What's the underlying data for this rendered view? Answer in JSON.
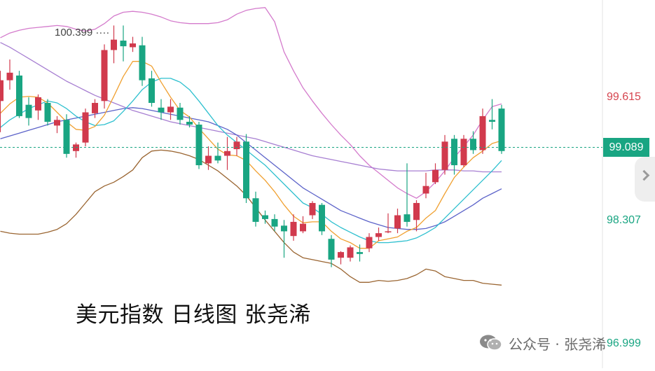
{
  "title": "美元指数 日线图 张尧浠",
  "watermark": {
    "text": "公众号 · 张尧浠",
    "icon": "wechat-icon"
  },
  "current_price": "99.089",
  "peak_label": "100.399 ····",
  "colors": {
    "up": "#d13a4d",
    "down": "#19a582",
    "ma5": "#f0a030",
    "ma10": "#2ec0cf",
    "ma20": "#5c63c9",
    "ma60": "#a77fd2",
    "boll_upper": "#d47bcc",
    "boll_lower": "#9a6531",
    "price_line": "#19a582",
    "label_red": "#d6454f",
    "label_green": "#19a582"
  },
  "chart_data": {
    "type": "candlestick",
    "title": "美元指数 日线图 张尧浠",
    "ylim": [
      96.75,
      100.65
    ],
    "y_ticks": [
      {
        "value": 99.615,
        "label": "99.615",
        "color": "red"
      },
      {
        "value": 98.307,
        "label": "98.307",
        "color": "green"
      },
      {
        "value": 96.999,
        "label": "96.999",
        "color": "green"
      }
    ],
    "current_price": 99.089,
    "peak_annotation": 100.399,
    "candles": [
      {
        "o": 99.58,
        "h": 99.9,
        "l": 99.25,
        "c": 99.8
      },
      {
        "o": 99.8,
        "h": 100.02,
        "l": 99.7,
        "c": 99.88
      },
      {
        "o": 99.85,
        "h": 99.9,
        "l": 99.4,
        "c": 99.42
      },
      {
        "o": 99.54,
        "h": 99.62,
        "l": 99.32,
        "c": 99.4
      },
      {
        "o": 99.48,
        "h": 99.65,
        "l": 99.38,
        "c": 99.62
      },
      {
        "o": 99.56,
        "h": 99.6,
        "l": 99.32,
        "c": 99.36
      },
      {
        "o": 99.32,
        "h": 99.42,
        "l": 99.24,
        "c": 99.38
      },
      {
        "o": 99.38,
        "h": 99.44,
        "l": 98.98,
        "c": 99.02
      },
      {
        "o": 99.05,
        "h": 99.14,
        "l": 98.98,
        "c": 99.12
      },
      {
        "o": 99.14,
        "h": 99.5,
        "l": 99.1,
        "c": 99.46
      },
      {
        "o": 99.45,
        "h": 99.6,
        "l": 99.4,
        "c": 99.56
      },
      {
        "o": 99.58,
        "h": 100.18,
        "l": 99.5,
        "c": 100.12
      },
      {
        "o": 100.12,
        "h": 100.38,
        "l": 99.98,
        "c": 100.23
      },
      {
        "o": 100.22,
        "h": 100.38,
        "l": 100.0,
        "c": 100.16
      },
      {
        "o": 100.15,
        "h": 100.26,
        "l": 100.1,
        "c": 100.19
      },
      {
        "o": 100.17,
        "h": 100.26,
        "l": 99.74,
        "c": 99.8
      },
      {
        "o": 99.82,
        "h": 99.9,
        "l": 99.52,
        "c": 99.56
      },
      {
        "o": 99.51,
        "h": 99.6,
        "l": 99.38,
        "c": 99.46
      },
      {
        "o": 99.46,
        "h": 99.6,
        "l": 99.38,
        "c": 99.52
      },
      {
        "o": 99.51,
        "h": 99.56,
        "l": 99.33,
        "c": 99.38
      },
      {
        "o": 99.36,
        "h": 99.42,
        "l": 99.3,
        "c": 99.33
      },
      {
        "o": 99.33,
        "h": 99.36,
        "l": 98.86,
        "c": 98.9
      },
      {
        "o": 98.92,
        "h": 99.1,
        "l": 98.85,
        "c": 99.0
      },
      {
        "o": 99.0,
        "h": 99.14,
        "l": 98.92,
        "c": 98.95
      },
      {
        "o": 99.0,
        "h": 99.2,
        "l": 98.85,
        "c": 99.05
      },
      {
        "o": 99.07,
        "h": 99.2,
        "l": 99.0,
        "c": 99.15
      },
      {
        "o": 99.15,
        "h": 99.23,
        "l": 98.5,
        "c": 98.55
      },
      {
        "o": 98.55,
        "h": 98.62,
        "l": 98.25,
        "c": 98.3
      },
      {
        "o": 98.37,
        "h": 98.42,
        "l": 98.28,
        "c": 98.33
      },
      {
        "o": 98.33,
        "h": 98.38,
        "l": 98.2,
        "c": 98.25
      },
      {
        "o": 98.26,
        "h": 98.32,
        "l": 97.92,
        "c": 98.2
      },
      {
        "o": 98.15,
        "h": 98.38,
        "l": 98.1,
        "c": 98.3
      },
      {
        "o": 98.2,
        "h": 98.36,
        "l": 98.18,
        "c": 98.28
      },
      {
        "o": 98.37,
        "h": 98.52,
        "l": 98.33,
        "c": 98.5
      },
      {
        "o": 98.48,
        "h": 98.5,
        "l": 98.16,
        "c": 98.2
      },
      {
        "o": 98.12,
        "h": 98.16,
        "l": 97.82,
        "c": 97.9
      },
      {
        "o": 97.92,
        "h": 97.99,
        "l": 97.85,
        "c": 97.98
      },
      {
        "o": 97.92,
        "h": 98.05,
        "l": 97.88,
        "c": 98.03
      },
      {
        "o": 97.98,
        "h": 98.06,
        "l": 97.88,
        "c": 97.96
      },
      {
        "o": 98.02,
        "h": 98.18,
        "l": 97.98,
        "c": 98.14
      },
      {
        "o": 98.14,
        "h": 98.24,
        "l": 98.1,
        "c": 98.18
      },
      {
        "o": 98.2,
        "h": 98.39,
        "l": 98.18,
        "c": 98.2
      },
      {
        "o": 98.23,
        "h": 98.44,
        "l": 98.18,
        "c": 98.37
      },
      {
        "o": 98.38,
        "h": 98.92,
        "l": 98.25,
        "c": 98.3
      },
      {
        "o": 98.32,
        "h": 98.53,
        "l": 98.2,
        "c": 98.5
      },
      {
        "o": 98.6,
        "h": 98.82,
        "l": 98.55,
        "c": 98.68
      },
      {
        "o": 98.72,
        "h": 98.92,
        "l": 98.7,
        "c": 98.85
      },
      {
        "o": 98.85,
        "h": 99.22,
        "l": 98.8,
        "c": 99.15
      },
      {
        "o": 99.18,
        "h": 99.22,
        "l": 98.8,
        "c": 98.9
      },
      {
        "o": 98.9,
        "h": 99.22,
        "l": 98.88,
        "c": 99.18
      },
      {
        "o": 99.18,
        "h": 99.26,
        "l": 99.02,
        "c": 99.06
      },
      {
        "o": 99.06,
        "h": 99.5,
        "l": 99.02,
        "c": 99.42
      },
      {
        "o": 99.38,
        "h": 99.6,
        "l": 99.28,
        "c": 99.36
      },
      {
        "o": 99.5,
        "h": 99.54,
        "l": 99.02,
        "c": 99.05
      }
    ],
    "indicators": {
      "ma5": [
        99.45,
        99.55,
        99.62,
        99.63,
        99.62,
        99.56,
        99.46,
        99.36,
        99.28,
        99.27,
        99.31,
        99.43,
        99.63,
        99.84,
        100.0,
        100.0,
        99.95,
        99.78,
        99.62,
        99.48,
        99.41,
        99.29,
        99.18,
        99.07,
        99.01,
        99.0,
        98.95,
        98.84,
        98.74,
        98.62,
        98.48,
        98.36,
        98.29,
        98.3,
        98.3,
        98.2,
        98.12,
        98.08,
        98.02,
        98.02,
        98.1,
        98.12,
        98.14,
        98.2,
        98.24,
        98.34,
        98.42,
        98.6,
        98.77,
        98.88,
        98.98,
        99.05,
        99.13,
        99.16
      ],
      "ma10": [
        99.3,
        99.38,
        99.44,
        99.5,
        99.54,
        99.58,
        99.56,
        99.5,
        99.42,
        99.36,
        99.32,
        99.33,
        99.37,
        99.47,
        99.58,
        99.7,
        99.78,
        99.82,
        99.82,
        99.78,
        99.7,
        99.58,
        99.45,
        99.32,
        99.22,
        99.14,
        99.06,
        98.98,
        98.9,
        98.8,
        98.7,
        98.6,
        98.5,
        98.45,
        98.38,
        98.3,
        98.24,
        98.19,
        98.14,
        98.1,
        98.08,
        98.08,
        98.09,
        98.1,
        98.13,
        98.18,
        98.24,
        98.34,
        98.44,
        98.54,
        98.64,
        98.74,
        98.84,
        98.95
      ],
      "ma20": [
        99.18,
        99.21,
        99.24,
        99.27,
        99.3,
        99.33,
        99.36,
        99.38,
        99.4,
        99.42,
        99.44,
        99.46,
        99.48,
        99.5,
        99.51,
        99.5,
        99.48,
        99.46,
        99.44,
        99.42,
        99.4,
        99.38,
        99.36,
        99.32,
        99.28,
        99.22,
        99.14,
        99.06,
        98.98,
        98.9,
        98.82,
        98.74,
        98.66,
        98.6,
        98.54,
        98.48,
        98.42,
        98.38,
        98.34,
        98.3,
        98.27,
        98.24,
        98.23,
        98.22,
        98.22,
        98.23,
        98.26,
        98.3,
        98.36,
        98.42,
        98.48,
        98.55,
        98.6,
        98.65
      ],
      "ma60": [
        100.2,
        100.15,
        100.09,
        100.03,
        99.97,
        99.91,
        99.85,
        99.79,
        99.74,
        99.69,
        99.64,
        99.6,
        99.56,
        99.52,
        99.48,
        99.45,
        99.42,
        99.39,
        99.36,
        99.34,
        99.32,
        99.3,
        99.28,
        99.26,
        99.24,
        99.22,
        99.2,
        99.18,
        99.15,
        99.12,
        99.09,
        99.06,
        99.03,
        99.0,
        98.98,
        98.96,
        98.94,
        98.92,
        98.9,
        98.88,
        98.86,
        98.85,
        98.84,
        98.84,
        98.84,
        98.84,
        98.85,
        98.85,
        98.85,
        98.84,
        98.84,
        98.83,
        98.83,
        98.83
      ],
      "boll_upper": [
        100.25,
        100.3,
        100.33,
        100.35,
        100.36,
        100.37,
        100.38,
        100.37,
        100.34,
        100.32,
        100.34,
        100.4,
        100.48,
        100.52,
        100.53,
        100.52,
        100.5,
        100.47,
        100.43,
        100.41,
        100.4,
        100.4,
        100.4,
        100.41,
        100.44,
        100.5,
        100.54,
        100.56,
        100.57,
        100.42,
        100.1,
        99.9,
        99.72,
        99.58,
        99.45,
        99.33,
        99.22,
        99.12,
        99.0,
        98.9,
        98.82,
        98.74,
        98.66,
        98.6,
        98.55,
        98.62,
        98.72,
        98.84,
        98.98,
        99.1,
        99.22,
        99.38,
        99.52,
        99.55
      ],
      "boll_lower": [
        98.2,
        98.18,
        98.17,
        98.17,
        98.17,
        98.19,
        98.22,
        98.28,
        98.38,
        98.5,
        98.62,
        98.68,
        98.72,
        98.78,
        98.85,
        98.98,
        99.05,
        99.06,
        99.05,
        99.03,
        99.0,
        98.96,
        98.9,
        98.84,
        98.76,
        98.68,
        98.58,
        98.45,
        98.32,
        98.2,
        98.08,
        97.98,
        97.92,
        97.9,
        97.88,
        97.86,
        97.8,
        97.72,
        97.66,
        97.66,
        97.68,
        97.67,
        97.68,
        97.7,
        97.74,
        97.8,
        97.78,
        97.72,
        97.7,
        97.68,
        97.68,
        97.65,
        97.64,
        97.63
      ]
    }
  }
}
